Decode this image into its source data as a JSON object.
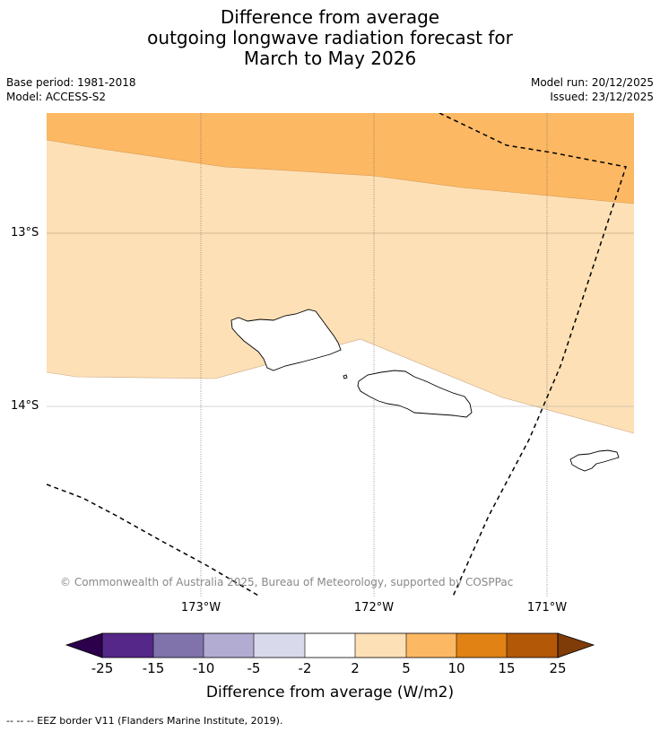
{
  "title": {
    "line1": "Difference from average",
    "line2": "outgoing longwave radiation forecast for",
    "line3": "March to May 2026"
  },
  "meta": {
    "base_period": "Base period: 1981-2018",
    "model": "Model: ACCESS-S2",
    "model_run": "Model run: 20/12/2025",
    "issued": "Issued: 23/12/2025"
  },
  "map": {
    "lat_labels": [
      "13°S",
      "14°S"
    ],
    "lon_labels": [
      "173°W",
      "172°W",
      "171°W"
    ],
    "copyright": "© Commonwealth of Australia 2025, Bureau of Meteorology, supported by COSPPac",
    "colors": {
      "band_5_10": "#fdb863",
      "band_2_5": "#fee0b6",
      "band_neutral": "#ffffff"
    },
    "islands": [
      "savaii-island",
      "upolu-island",
      "tutuila-island"
    ]
  },
  "colorbar": {
    "label": "Difference from average (W/m2)",
    "ticks": [
      "-25",
      "-15",
      "-10",
      "-5",
      "-2",
      "2",
      "5",
      "10",
      "15",
      "25"
    ],
    "colors": [
      "#2d004b",
      "#542788",
      "#8073ac",
      "#b2abd2",
      "#d8daeb",
      "#ffffff",
      "#fee0b6",
      "#fdb863",
      "#e08214",
      "#b35806",
      "#7f3b08"
    ]
  },
  "footnote": "--  --  -- EEZ border V11 (Flanders Marine Institute, 2019)."
}
